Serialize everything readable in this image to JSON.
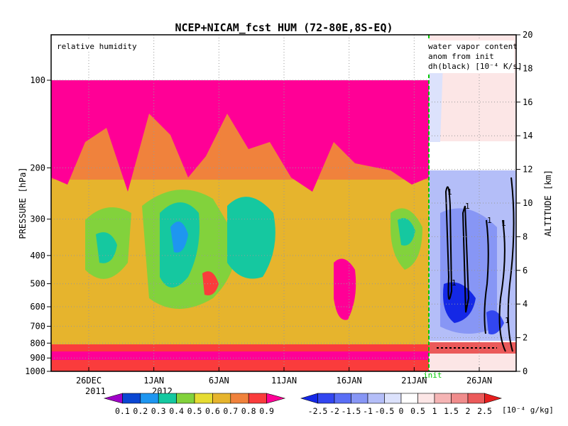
{
  "chart_data": {
    "type": "heatmap",
    "title": "NCEP+NICAM_fcst HUM (72-80E,8S-EQ)",
    "left_panel_label": "relative humidity",
    "right_panel_label_lines": [
      "water vapor content",
      "anom from init",
      "dh(black) [10⁻⁴ K/s]"
    ],
    "ylabel_left": "PRESSURE [hPa]",
    "ylabel_right": "ALTITUDE [km]",
    "pressure_ticks": [
      100,
      200,
      300,
      400,
      500,
      600,
      700,
      800,
      900,
      1000
    ],
    "altitude_ticks": [
      0,
      2,
      4,
      6,
      8,
      10,
      12,
      14,
      16,
      18,
      20
    ],
    "x_ticks": [
      "26DEC",
      "1JAN",
      "6JAN",
      "11JAN",
      "16JAN",
      "21JAN",
      "26JAN"
    ],
    "x_year_labels": [
      "2011",
      "2012"
    ],
    "init_label": "init",
    "log_pressure_axis": true,
    "grid": true,
    "rh_colorbar": {
      "labels": [
        "0.1",
        "0.2",
        "0.3",
        "0.4",
        "0.5",
        "0.6",
        "0.7",
        "0.8",
        "0.9"
      ],
      "colors": [
        "#a000c8",
        "#0a46d2",
        "#1e96f0",
        "#15c8a0",
        "#82d23c",
        "#e6dc32",
        "#e6b42d",
        "#f0823c",
        "#fa3c3c",
        "#ff0096"
      ]
    },
    "anom_colorbar": {
      "labels": [
        "-2.5",
        "-2",
        "-1.5",
        "-1",
        "-0.5",
        "0",
        "0.5",
        "1",
        "1.5",
        "2",
        "2.5"
      ],
      "unit": "[10⁻⁴ g/kg]",
      "colors": [
        "#1428e6",
        "#3246f0",
        "#5a6ef5",
        "#8796f5",
        "#b4bef8",
        "#dce2fc",
        "#ffffff",
        "#fce6e6",
        "#f5b4b4",
        "#f08c8c",
        "#eb5a5a",
        "#e61e1e"
      ]
    },
    "rh_profile_by_pressure": [
      {
        "hPa": 100,
        "rh": 0.9
      },
      {
        "hPa": 200,
        "rh": 0.75
      },
      {
        "hPa": 300,
        "rh": 0.65
      },
      {
        "hPa": 400,
        "rh": 0.5
      },
      {
        "hPa": 500,
        "rh": 0.6
      },
      {
        "hPa": 600,
        "rh": 0.55
      },
      {
        "hPa": 700,
        "rh": 0.6
      },
      {
        "hPa": 800,
        "rh": 0.75
      },
      {
        "hPa": 900,
        "rh": 0.85
      },
      {
        "hPa": 1000,
        "rh": 0.8
      }
    ],
    "dh_contour_labels": [
      "1",
      "1",
      "1",
      "1",
      "1",
      "1"
    ]
  }
}
